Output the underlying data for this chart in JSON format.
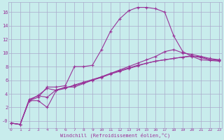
{
  "background_color": "#c8ecec",
  "grid_color": "#aaaacc",
  "line_color": "#993399",
  "xlim": [
    -0.3,
    23.3
  ],
  "ylim": [
    -1.0,
    17.5
  ],
  "yticks": [
    0,
    2,
    4,
    6,
    8,
    10,
    12,
    14,
    16
  ],
  "ytick_labels": [
    "-0",
    "2",
    "4",
    "6",
    "8",
    "10",
    "12",
    "14",
    "16"
  ],
  "xticks": [
    0,
    1,
    2,
    3,
    4,
    5,
    6,
    7,
    8,
    9,
    10,
    11,
    12,
    13,
    14,
    15,
    16,
    17,
    18,
    19,
    20,
    21,
    22,
    23
  ],
  "xlabel": "Windchill (Refroidissement éolien,°C)",
  "lines": [
    {
      "x": [
        0,
        1,
        2,
        3,
        4,
        5,
        6,
        7,
        8,
        9,
        10,
        11,
        12,
        13,
        14,
        15,
        16,
        17,
        18,
        19,
        20,
        21,
        22,
        23
      ],
      "y": [
        -0.3,
        -0.5,
        3.0,
        3.5,
        5.0,
        5.0,
        5.2,
        8.0,
        8.0,
        8.2,
        10.5,
        13.2,
        15.0,
        16.2,
        16.7,
        16.7,
        16.5,
        16.0,
        12.5,
        10.2,
        9.5,
        9.5,
        9.0,
        9.0
      ]
    },
    {
      "x": [
        0,
        1,
        2,
        3,
        4,
        5,
        6,
        7,
        8,
        9,
        10,
        11,
        12,
        13,
        14,
        15,
        16,
        17,
        18,
        19,
        20,
        21,
        22,
        23
      ],
      "y": [
        -0.3,
        -0.5,
        3.0,
        3.0,
        2.0,
        4.5,
        5.0,
        5.0,
        5.5,
        6.0,
        6.5,
        7.0,
        7.5,
        8.0,
        8.5,
        9.0,
        9.5,
        10.2,
        10.5,
        10.0,
        9.8,
        9.5,
        9.2,
        9.0
      ]
    },
    {
      "x": [
        0,
        1,
        2,
        3,
        4,
        5,
        6,
        7,
        8,
        9,
        10,
        11,
        12,
        13,
        14,
        15,
        16,
        17,
        18,
        19,
        20,
        21,
        22,
        23
      ],
      "y": [
        -0.3,
        -0.5,
        3.0,
        3.8,
        4.8,
        4.5,
        4.8,
        5.3,
        5.7,
        6.1,
        6.5,
        7.0,
        7.4,
        7.8,
        8.2,
        8.5,
        8.8,
        9.0,
        9.2,
        9.4,
        9.6,
        9.3,
        9.0,
        8.9
      ]
    },
    {
      "x": [
        0,
        1,
        2,
        3,
        4,
        5,
        6,
        7,
        8,
        9,
        10,
        11,
        12,
        13,
        14,
        15,
        16,
        17,
        18,
        19,
        20,
        21,
        22,
        23
      ],
      "y": [
        -0.3,
        -0.5,
        3.2,
        3.7,
        3.5,
        4.6,
        4.9,
        5.2,
        5.6,
        6.0,
        6.4,
        6.9,
        7.3,
        7.7,
        8.1,
        8.5,
        8.8,
        9.0,
        9.2,
        9.4,
        9.5,
        9.0,
        8.9,
        8.8
      ]
    }
  ]
}
